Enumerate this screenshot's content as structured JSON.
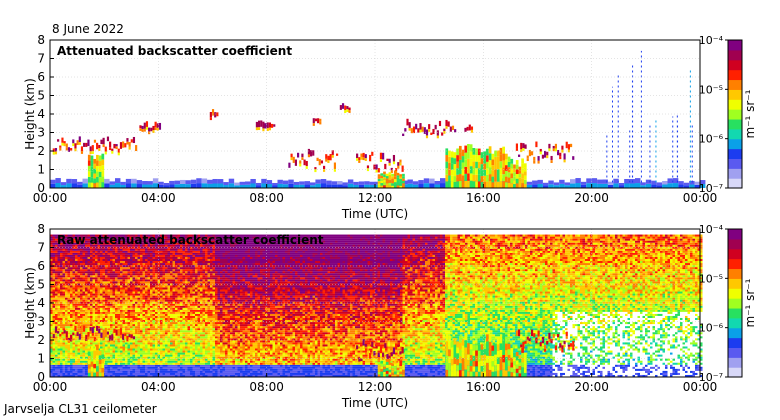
{
  "date": "8 June 2022",
  "instrument": "Jarvselja CL31 ceilometer",
  "colorbar": {
    "colors": [
      "#d8d8f8",
      "#a0a0f0",
      "#5a5af0",
      "#1c3cf0",
      "#0aa0e8",
      "#12d8b0",
      "#28e060",
      "#a0ff20",
      "#f0ff00",
      "#ffc800",
      "#ff8000",
      "#ff2000",
      "#d00020",
      "#a00050",
      "#800080"
    ]
  },
  "chart_data": [
    {
      "type": "heatmap",
      "title": "Attenuated backscatter coefficient",
      "xlabel": "Time (UTC)",
      "ylabel": "Height (km)",
      "xticks": [
        "00:00",
        "04:00",
        "08:00",
        "12:00",
        "16:00",
        "20:00",
        "00:00"
      ],
      "yticks": [
        "0",
        "1",
        "2",
        "3",
        "4",
        "5",
        "6",
        "7",
        "8"
      ],
      "xlim_hours": [
        0,
        24
      ],
      "ylim_km": [
        0,
        8
      ],
      "colorbar_label": "m⁻¹ sr⁻¹",
      "colorbar_ticks": [
        "10⁻⁴",
        "10⁻⁵",
        "10⁻⁶",
        "10⁻⁷"
      ],
      "colorbar_range_log10": [
        -7,
        -4
      ],
      "grid": true,
      "features": [
        {
          "kind": "surface_layer",
          "t_start": 0.0,
          "t_end": 24.0,
          "h_top": 0.45
        },
        {
          "kind": "cloud_layer",
          "t_start": 0.1,
          "t_end": 3.2,
          "h_base": 1.9,
          "h_top": 3.0
        },
        {
          "kind": "cloud_layer",
          "t_start": 3.3,
          "t_end": 4.1,
          "h_base": 3.0,
          "h_top": 3.5
        },
        {
          "kind": "cloud_layer",
          "t_start": 5.9,
          "t_end": 6.2,
          "h_base": 3.8,
          "h_top": 4.0
        },
        {
          "kind": "cloud_layer",
          "t_start": 7.6,
          "t_end": 8.3,
          "h_base": 3.2,
          "h_top": 3.4
        },
        {
          "kind": "cloud_layer",
          "t_start": 8.8,
          "t_end": 10.6,
          "h_base": 1.0,
          "h_top": 2.4
        },
        {
          "kind": "cloud_layer",
          "t_start": 9.7,
          "t_end": 10.0,
          "h_base": 3.5,
          "h_top": 3.7
        },
        {
          "kind": "cloud_layer",
          "t_start": 10.7,
          "t_end": 11.1,
          "h_base": 4.2,
          "h_top": 4.4
        },
        {
          "kind": "cloud_layer",
          "t_start": 11.3,
          "t_end": 13.0,
          "h_base": 0.8,
          "h_top": 2.4
        },
        {
          "kind": "cloud_layer",
          "t_start": 13.0,
          "t_end": 15.0,
          "h_base": 2.8,
          "h_top": 3.8
        },
        {
          "kind": "cloud_layer",
          "t_start": 15.3,
          "t_end": 15.6,
          "h_base": 3.0,
          "h_top": 3.3
        },
        {
          "kind": "cloud_layer",
          "t_start": 17.2,
          "t_end": 19.3,
          "h_base": 1.4,
          "h_top": 2.8
        },
        {
          "kind": "precipitation",
          "t_start": 1.4,
          "t_end": 2.0,
          "h_top": 1.9
        },
        {
          "kind": "precipitation",
          "t_start": 12.1,
          "t_end": 13.0,
          "h_top": 1.0
        },
        {
          "kind": "precipitation",
          "t_start": 14.6,
          "t_end": 17.0,
          "h_top": 2.4
        },
        {
          "kind": "precipitation",
          "t_start": 17.0,
          "t_end": 17.6,
          "h_top": 1.6
        },
        {
          "kind": "streaks",
          "t_start": 20.5,
          "t_end": 24.0,
          "h_top": 7.5
        }
      ]
    },
    {
      "type": "heatmap",
      "title": "Raw attenuated backscatter coefficient",
      "xlabel": "Time (UTC)",
      "ylabel": "Height (km)",
      "xticks": [
        "00:00",
        "04:00",
        "08:00",
        "12:00",
        "16:00",
        "20:00",
        "00:00"
      ],
      "yticks": [
        "0",
        "1",
        "2",
        "3",
        "4",
        "5",
        "6",
        "7",
        "8"
      ],
      "xlim_hours": [
        0,
        24
      ],
      "ylim_km": [
        0,
        8
      ],
      "colorbar_label": "m⁻¹ sr⁻¹",
      "colorbar_ticks": [
        "10⁻⁴",
        "10⁻⁵",
        "10⁻⁶",
        "10⁻⁷"
      ],
      "colorbar_range_log10": [
        -7,
        -4
      ],
      "grid": true,
      "data_top_km": 7.7,
      "features": [
        {
          "kind": "noise_field",
          "t_start": 0.0,
          "t_end": 24.0
        },
        {
          "kind": "cloud_layer",
          "t_start": 0.1,
          "t_end": 3.2,
          "h_base": 1.9,
          "h_top": 3.0
        },
        {
          "kind": "cloud_layer",
          "t_start": 11.3,
          "t_end": 13.0,
          "h_base": 0.8,
          "h_top": 2.4
        },
        {
          "kind": "cloud_layer",
          "t_start": 17.2,
          "t_end": 19.3,
          "h_base": 1.4,
          "h_top": 2.8
        },
        {
          "kind": "precipitation",
          "t_start": 1.4,
          "t_end": 2.0,
          "h_top": 1.9
        },
        {
          "kind": "precipitation",
          "t_start": 12.1,
          "t_end": 13.0,
          "h_top": 1.0
        },
        {
          "kind": "precipitation",
          "t_start": 14.6,
          "t_end": 17.0,
          "h_top": 2.4
        },
        {
          "kind": "precipitation",
          "t_start": 17.0,
          "t_end": 17.6,
          "h_top": 1.6
        },
        {
          "kind": "clear_gap",
          "t_start": 18.5,
          "t_end": 24.0,
          "h_top": 3.5
        }
      ]
    }
  ]
}
